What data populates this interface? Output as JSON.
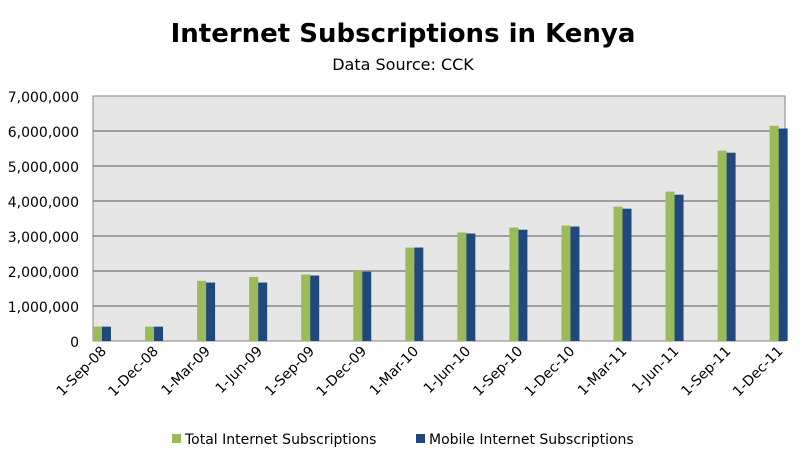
{
  "chart_data": {
    "type": "bar",
    "title": "Internet Subscriptions in Kenya",
    "subtitle": "Data Source: CCK",
    "xlabel": "",
    "ylabel": "",
    "ylim": [
      0,
      7000000
    ],
    "yticks": [
      "0",
      "1,000,000",
      "2,000,000",
      "3,000,000",
      "4,000,000",
      "5,000,000",
      "6,000,000",
      "7,000,000"
    ],
    "grid": true,
    "legend_position": "bottom",
    "categories": [
      "1-Sep-08",
      "1-Dec-08",
      "1-Mar-09",
      "1-Jun-09",
      "1-Sep-09",
      "1-Dec-09",
      "1-Mar-10",
      "1-Jun-10",
      "1-Sep-10",
      "1-Dec-10",
      "1-Mar-11",
      "1-Jun-11",
      "1-Sep-11",
      "1-Dec-11"
    ],
    "series": [
      {
        "name": "Total Internet Subscriptions",
        "color": "#9bbb59",
        "values": [
          410000,
          410000,
          1720000,
          1830000,
          1900000,
          2010000,
          2670000,
          3100000,
          3240000,
          3300000,
          3840000,
          4270000,
          5440000,
          6150000
        ]
      },
      {
        "name": "Mobile Internet Subscriptions",
        "color": "#1f497d",
        "values": [
          410000,
          410000,
          1670000,
          1670000,
          1870000,
          1980000,
          2670000,
          3070000,
          3180000,
          3270000,
          3780000,
          4180000,
          5380000,
          6070000
        ]
      }
    ]
  }
}
